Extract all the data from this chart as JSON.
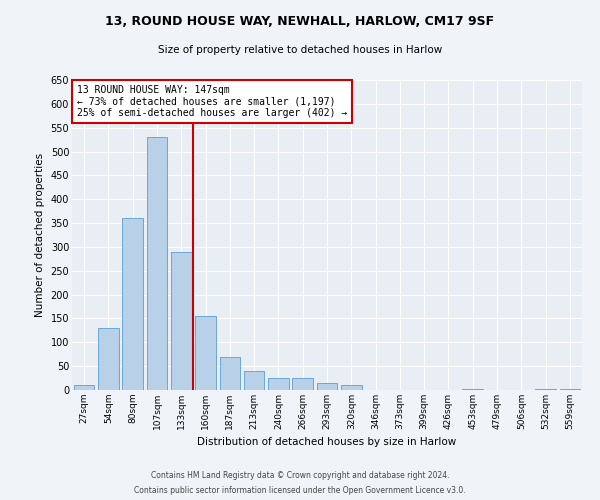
{
  "title1": "13, ROUND HOUSE WAY, NEWHALL, HARLOW, CM17 9SF",
  "title2": "Size of property relative to detached houses in Harlow",
  "xlabel": "Distribution of detached houses by size in Harlow",
  "ylabel": "Number of detached properties",
  "categories": [
    "27sqm",
    "54sqm",
    "80sqm",
    "107sqm",
    "133sqm",
    "160sqm",
    "187sqm",
    "213sqm",
    "240sqm",
    "266sqm",
    "293sqm",
    "320sqm",
    "346sqm",
    "373sqm",
    "399sqm",
    "426sqm",
    "453sqm",
    "479sqm",
    "506sqm",
    "532sqm",
    "559sqm"
  ],
  "values": [
    10,
    130,
    360,
    530,
    290,
    155,
    70,
    40,
    25,
    25,
    15,
    10,
    0,
    0,
    0,
    0,
    2,
    0,
    0,
    2,
    2
  ],
  "bar_color": "#b8d0e8",
  "bar_edge_color": "#5a9fd4",
  "background_color": "#e8eef4",
  "grid_color": "#ffffff",
  "fig_background": "#f0f4f8",
  "vline_x": 4.5,
  "vline_color": "#cc0000",
  "annotation_text": "13 ROUND HOUSE WAY: 147sqm\n← 73% of detached houses are smaller (1,197)\n25% of semi-detached houses are larger (402) →",
  "annotation_box_color": "#ffffff",
  "annotation_box_edge": "#cc0000",
  "footer1": "Contains HM Land Registry data © Crown copyright and database right 2024.",
  "footer2": "Contains public sector information licensed under the Open Government Licence v3.0.",
  "ylim": [
    0,
    650
  ],
  "yticks": [
    0,
    50,
    100,
    150,
    200,
    250,
    300,
    350,
    400,
    450,
    500,
    550,
    600,
    650
  ]
}
